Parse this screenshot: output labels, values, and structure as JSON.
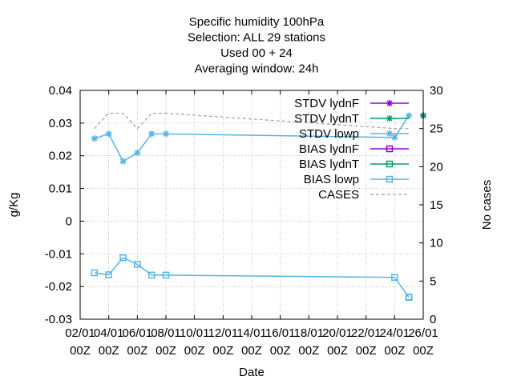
{
  "chart_data": {
    "type": "line",
    "title_lines": [
      "Specific humidity 100hPa",
      "Selection: ALL      29 stations",
      "Used  00 + 24",
      "Averaging window: 24h"
    ],
    "xlabel": "Date",
    "ylabel": "g/Kg",
    "y2label": "No cases",
    "x_ticks": [
      [
        "02/01",
        "00Z"
      ],
      [
        "04/01",
        "00Z"
      ],
      [
        "06/01",
        "00Z"
      ],
      [
        "08/01",
        "00Z"
      ],
      [
        "10/01",
        "00Z"
      ],
      [
        "12/01",
        "00Z"
      ],
      [
        "14/01",
        "00Z"
      ],
      [
        "16/01",
        "00Z"
      ],
      [
        "18/01",
        "00Z"
      ],
      [
        "20/01",
        "00Z"
      ],
      [
        "22/01",
        "00Z"
      ],
      [
        "24/01",
        "00Z"
      ],
      [
        "26/01",
        "00Z"
      ]
    ],
    "xlim": [
      "2024-01-02T00",
      "2024-01-26T00"
    ],
    "ylim": [
      -0.03,
      0.04
    ],
    "y_ticks": [
      "-0.03",
      "-0.02",
      "-0.01",
      "0",
      "0.01",
      "0.02",
      "0.03",
      "0.04"
    ],
    "y2lim": [
      0,
      30
    ],
    "y2_ticks": [
      "0",
      "5",
      "10",
      "15",
      "20",
      "25",
      "30"
    ],
    "grid": true,
    "legend_position": "top-right",
    "series": [
      {
        "name": "STDV lydnF",
        "color": "#9400d3",
        "marker": "star",
        "dash": false,
        "axis": "y1",
        "points": [
          [
            "2024-01-26T00",
            0.0323
          ]
        ]
      },
      {
        "name": "STDV lydnT",
        "color": "#009e73",
        "marker": "star",
        "dash": false,
        "axis": "y1",
        "points": [
          [
            "2024-01-26T00",
            0.0323
          ]
        ]
      },
      {
        "name": "STDV lowp",
        "color": "#56b4e9",
        "marker": "star",
        "dash": false,
        "axis": "y1",
        "points": [
          [
            "2024-01-03T00",
            0.0253
          ],
          [
            "2024-01-04T00",
            0.0267
          ],
          [
            "2024-01-05T00",
            0.0183
          ],
          [
            "2024-01-06T00",
            0.0209
          ],
          [
            "2024-01-07T00",
            0.0267
          ],
          [
            "2024-01-08T00",
            0.0267
          ],
          [
            "2024-01-24T00",
            0.0256
          ],
          [
            "2024-01-25T00",
            0.0323
          ]
        ]
      },
      {
        "name": "BIAS lydnF",
        "color": "#9400d3",
        "marker": "square",
        "dash": false,
        "axis": "y1",
        "points": [
          [
            "2024-01-25T00",
            -0.0233
          ]
        ]
      },
      {
        "name": "BIAS lydnT",
        "color": "#009e73",
        "marker": "square",
        "dash": false,
        "axis": "y1",
        "points": [
          [
            "2024-01-25T00",
            -0.0233
          ]
        ]
      },
      {
        "name": "BIAS lowp",
        "color": "#56b4e9",
        "marker": "square",
        "dash": false,
        "axis": "y1",
        "points": [
          [
            "2024-01-03T00",
            -0.0158
          ],
          [
            "2024-01-04T00",
            -0.0164
          ],
          [
            "2024-01-05T00",
            -0.0112
          ],
          [
            "2024-01-06T00",
            -0.0132
          ],
          [
            "2024-01-07T00",
            -0.0165
          ],
          [
            "2024-01-08T00",
            -0.0165
          ],
          [
            "2024-01-24T00",
            -0.0172
          ],
          [
            "2024-01-25T00",
            -0.0233
          ]
        ]
      },
      {
        "name": "CASES",
        "color": "#a0a0a4",
        "marker": "none",
        "dash": true,
        "axis": "y2",
        "points": [
          [
            "2024-01-03T00",
            25
          ],
          [
            "2024-01-04T00",
            27
          ],
          [
            "2024-01-05T00",
            27
          ],
          [
            "2024-01-06T00",
            25
          ],
          [
            "2024-01-07T00",
            27
          ],
          [
            "2024-01-08T00",
            27
          ],
          [
            "2024-01-24T00",
            25
          ],
          [
            "2024-01-25T00",
            25
          ]
        ]
      }
    ]
  }
}
